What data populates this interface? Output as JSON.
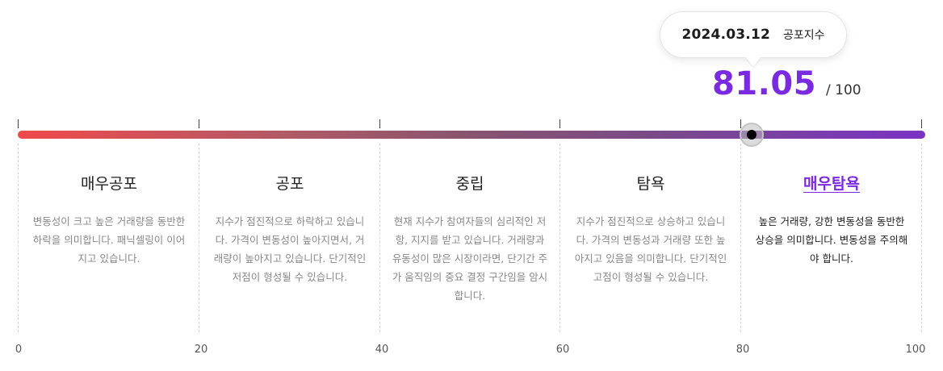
{
  "tooltip": {
    "date": "2024.03.12",
    "label": "공포지수"
  },
  "score": {
    "value": "81.05",
    "max_label": "/ 100",
    "numeric_value": 81.05,
    "scale_max": 100
  },
  "colors": {
    "accent": "#7a2be0",
    "track_start": "#f04a4c",
    "track_end": "#7a34c4",
    "marker": "#000000"
  },
  "segments": [
    {
      "title": "매우공포",
      "description": "변동성이 크고 높은 거래량을 동반한 하락을 의미합니다. 패닉셀링이 이어지고 있습니다.",
      "active": false
    },
    {
      "title": "공포",
      "description": "지수가 점진적으로 하락하고 있습니다. 가격이 변동성이 높아지면서, 거래량이 높아지고 있습니다. 단기적인 저점이 형성될 수 있습니다.",
      "active": false
    },
    {
      "title": "중립",
      "description": "현재 지수가 참여자들의 심리적인 저항, 지지를 받고 있습니다. 거래량과 유동성이 많은 시장이라면, 단기간 주가 움직임의 중요 결정 구간임을 암시합니다.",
      "active": false
    },
    {
      "title": "탐욕",
      "description": "지수가 점진적으로 상승하고 있습니다. 가격의 변동성과 거래량 또한 높아지고 있음을 의미합니다. 단기적인 고점이 형성될 수 있습니다.",
      "active": false
    },
    {
      "title": "매우탐욕",
      "description": "높은 거래량, 강한 변동성을 동반한 상승을 의미합니다. 변동성을 주의해야 합니다.",
      "active": true
    }
  ],
  "axis": {
    "labels": [
      "0",
      "20",
      "40",
      "60",
      "80",
      "100"
    ]
  }
}
